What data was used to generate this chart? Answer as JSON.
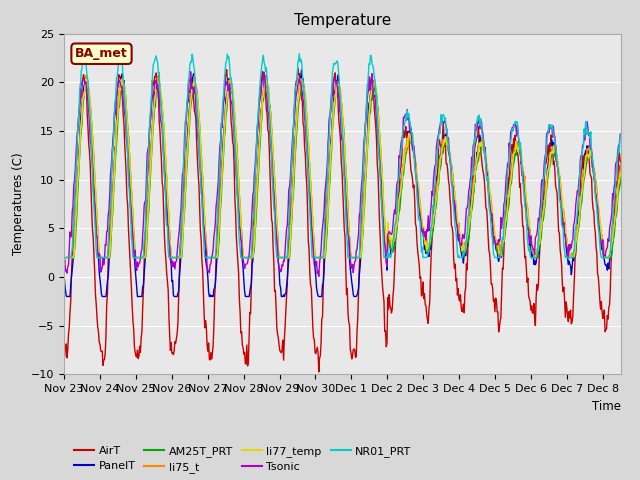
{
  "title": "Temperature",
  "ylabel": "Temperatures (C)",
  "xlabel": "Time",
  "ylim": [
    -10,
    25
  ],
  "yticks": [
    -10,
    -5,
    0,
    5,
    10,
    15,
    20,
    25
  ],
  "annotation_text": "BA_met",
  "annotation_bg": "#ffffcc",
  "annotation_border": "#8B0000",
  "annotation_text_color": "#8B0000",
  "x_tick_labels": [
    "Nov 23",
    "Nov 24",
    "Nov 25",
    "Nov 26",
    "Nov 27",
    "Nov 28",
    "Nov 29",
    "Nov 30",
    "Dec 1",
    "Dec 2",
    "Dec 3",
    "Dec 4",
    "Dec 5",
    "Dec 6",
    "Dec 7",
    "Dec 8"
  ],
  "series_colors": {
    "AirT": "#cc0000",
    "PanelT": "#0000cc",
    "AM25T_PRT": "#00aa00",
    "li75_t": "#ff8800",
    "li77_temp": "#dddd00",
    "Tsonic": "#aa00cc",
    "NR01_PRT": "#00cccc"
  },
  "fig_bg": "#d8d8d8",
  "ax_bg": "#e8e8e8",
  "grid_color": "#ffffff"
}
